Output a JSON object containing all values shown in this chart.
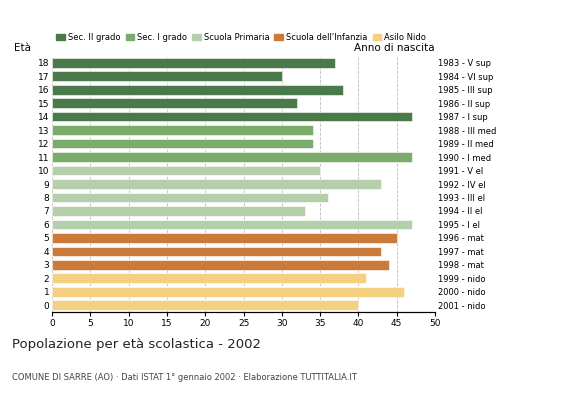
{
  "ages": [
    18,
    17,
    16,
    15,
    14,
    13,
    12,
    11,
    10,
    9,
    8,
    7,
    6,
    5,
    4,
    3,
    2,
    1,
    0
  ],
  "values": [
    37,
    30,
    38,
    32,
    47,
    34,
    34,
    47,
    35,
    43,
    36,
    33,
    47,
    45,
    43,
    44,
    41,
    46,
    40
  ],
  "right_labels": [
    "1983 - V sup",
    "1984 - VI sup",
    "1985 - III sup",
    "1986 - II sup",
    "1987 - I sup",
    "1988 - III med",
    "1989 - II med",
    "1990 - I med",
    "1991 - V el",
    "1992 - IV el",
    "1993 - III el",
    "1994 - II el",
    "1995 - I el",
    "1996 - mat",
    "1997 - mat",
    "1998 - mat",
    "1999 - nido",
    "2000 - nido",
    "2001 - nido"
  ],
  "colors": [
    "#4a7a4a",
    "#4a7a4a",
    "#4a7a4a",
    "#4a7a4a",
    "#4a7a4a",
    "#7aab6a",
    "#7aab6a",
    "#7aab6a",
    "#b5ceab",
    "#b5ceab",
    "#b5ceab",
    "#b5ceab",
    "#b5ceab",
    "#cc7a3a",
    "#cc7a3a",
    "#cc7a3a",
    "#f5d080",
    "#f5d080",
    "#f5d080"
  ],
  "legend_labels": [
    "Sec. II grado",
    "Sec. I grado",
    "Scuola Primaria",
    "Scuola dell'Infanzia",
    "Asilo Nido"
  ],
  "legend_colors": [
    "#4a7a4a",
    "#7aab6a",
    "#b5ceab",
    "#cc7a3a",
    "#f5d080"
  ],
  "title": "Popolazione per età scolastica - 2002",
  "subtitle": "COMUNE DI SARRE (AO) · Dati ISTAT 1° gennaio 2002 · Elaborazione TUTTITALIA.IT",
  "ylabel_left": "Età",
  "ylabel_right": "Anno di nascita",
  "xlim": [
    0,
    50
  ],
  "xticks": [
    0,
    5,
    10,
    15,
    20,
    25,
    30,
    35,
    40,
    45,
    50
  ],
  "background_color": "#ffffff",
  "grid_color": "#bbbbbb"
}
